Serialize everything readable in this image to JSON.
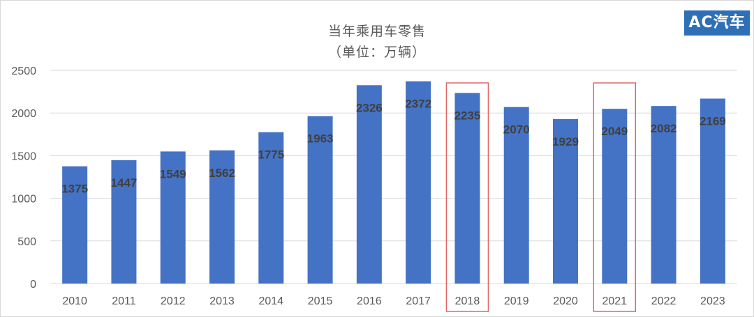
{
  "title": "当年乘用车零售",
  "subtitle": "（单位：万辆）",
  "logo_text": "AC汽车",
  "colors": {
    "bar": "#4472c4",
    "highlight_box": "#e06666",
    "grid": "#d9d9d9",
    "tick_text": "#595959",
    "label_text": "#404040"
  },
  "chart_data": {
    "type": "bar",
    "categories": [
      "2010",
      "2011",
      "2012",
      "2013",
      "2014",
      "2015",
      "2016",
      "2017",
      "2018",
      "2019",
      "2020",
      "2021",
      "2022",
      "2023"
    ],
    "values": [
      1375,
      1447,
      1549,
      1562,
      1775,
      1963,
      2326,
      2372,
      2235,
      2070,
      1929,
      2049,
      2082,
      2169
    ],
    "ylim": [
      0,
      2500
    ],
    "yticks": [
      0,
      500,
      1000,
      1500,
      2000,
      2500
    ],
    "grid": true,
    "highlighted_categories": [
      "2018",
      "2021"
    ],
    "data_labels": true
  }
}
